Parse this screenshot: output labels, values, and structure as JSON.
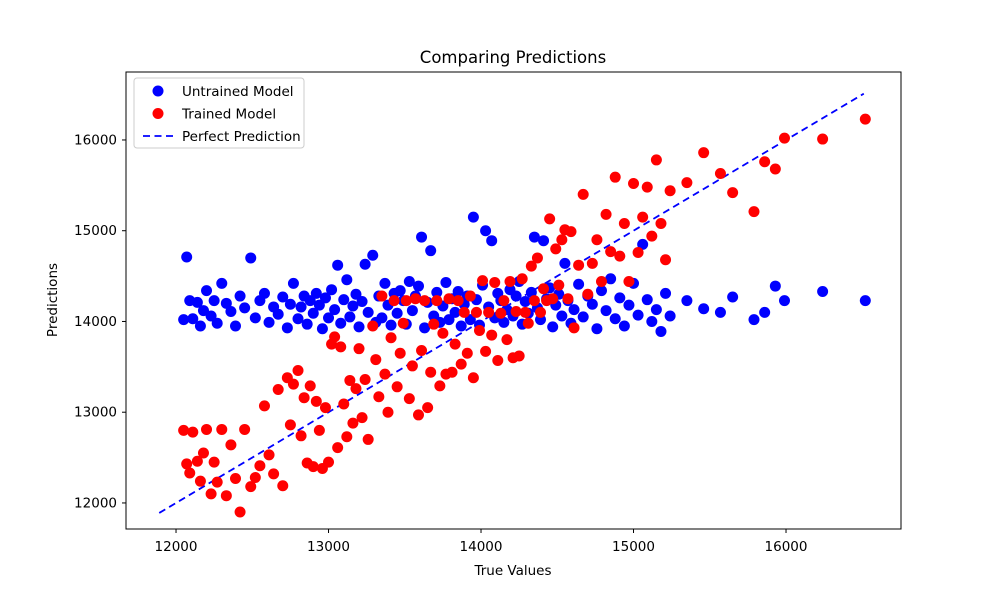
{
  "figure": {
    "title": "Comparing Predictions",
    "xlabel": "True Values",
    "ylabel": "Predictions",
    "background_color": "#ffffff",
    "spine_color": "#000000"
  },
  "chart_data": {
    "type": "scatter",
    "title": "Comparing Predictions",
    "xlabel": "True Values",
    "ylabel": "Predictions",
    "grid": false,
    "legend_position": "upper-left",
    "xlim": [
      11672,
      16754
    ],
    "ylim": [
      11713,
      16749
    ],
    "x_ticks": [
      12000,
      13000,
      14000,
      15000,
      16000
    ],
    "y_ticks": [
      12000,
      13000,
      14000,
      15000,
      16000
    ],
    "series": [
      {
        "name": "Untrained Model",
        "color": "#0000ff",
        "marker": "circle",
        "points": [
          [
            12050,
            14020
          ],
          [
            12070,
            14710
          ],
          [
            12090,
            14230
          ],
          [
            12110,
            14030
          ],
          [
            12140,
            14210
          ],
          [
            12160,
            13950
          ],
          [
            12180,
            14120
          ],
          [
            12200,
            14340
          ],
          [
            12230,
            14060
          ],
          [
            12250,
            14230
          ],
          [
            12270,
            13980
          ],
          [
            12300,
            14420
          ],
          [
            12330,
            14200
          ],
          [
            12360,
            14110
          ],
          [
            12390,
            13950
          ],
          [
            12420,
            14280
          ],
          [
            12450,
            14150
          ],
          [
            12490,
            14700
          ],
          [
            12520,
            14040
          ],
          [
            12550,
            14230
          ],
          [
            12580,
            14310
          ],
          [
            12610,
            13990
          ],
          [
            12640,
            14160
          ],
          [
            12670,
            14080
          ],
          [
            12700,
            14270
          ],
          [
            12730,
            13930
          ],
          [
            12750,
            14190
          ],
          [
            12770,
            14420
          ],
          [
            12800,
            14030
          ],
          [
            12820,
            14160
          ],
          [
            12840,
            14280
          ],
          [
            12860,
            13970
          ],
          [
            12880,
            14230
          ],
          [
            12900,
            14090
          ],
          [
            12920,
            14310
          ],
          [
            12940,
            14180
          ],
          [
            12960,
            13920
          ],
          [
            12980,
            14260
          ],
          [
            13000,
            14040
          ],
          [
            13020,
            14350
          ],
          [
            13040,
            14130
          ],
          [
            13060,
            14620
          ],
          [
            13080,
            13980
          ],
          [
            13100,
            14240
          ],
          [
            13120,
            14460
          ],
          [
            13140,
            14050
          ],
          [
            13160,
            14170
          ],
          [
            13180,
            14300
          ],
          [
            13200,
            13940
          ],
          [
            13220,
            14220
          ],
          [
            13240,
            14630
          ],
          [
            13260,
            14100
          ],
          [
            13290,
            14730
          ],
          [
            13310,
            13990
          ],
          [
            13330,
            14280
          ],
          [
            13350,
            14040
          ],
          [
            13370,
            14420
          ],
          [
            13390,
            14180
          ],
          [
            13410,
            13960
          ],
          [
            13430,
            14310
          ],
          [
            13450,
            14090
          ],
          [
            13470,
            14340
          ],
          [
            13490,
            14230
          ],
          [
            13510,
            13970
          ],
          [
            13530,
            14440
          ],
          [
            13550,
            14120
          ],
          [
            13570,
            14280
          ],
          [
            13590,
            14390
          ],
          [
            13610,
            14930
          ],
          [
            13630,
            13930
          ],
          [
            13650,
            14210
          ],
          [
            13670,
            14780
          ],
          [
            13690,
            14060
          ],
          [
            13710,
            14320
          ],
          [
            13730,
            13990
          ],
          [
            13750,
            14170
          ],
          [
            13770,
            14430
          ],
          [
            13790,
            14020
          ],
          [
            13810,
            14250
          ],
          [
            13830,
            14100
          ],
          [
            13850,
            14330
          ],
          [
            13870,
            13950
          ],
          [
            13890,
            14190
          ],
          [
            13910,
            14280
          ],
          [
            13930,
            14020
          ],
          [
            13950,
            15150
          ],
          [
            13970,
            14240
          ],
          [
            13990,
            13960
          ],
          [
            14010,
            14400
          ],
          [
            14030,
            15000
          ],
          [
            14050,
            14160
          ],
          [
            14070,
            14890
          ],
          [
            14090,
            14040
          ],
          [
            14110,
            14310
          ],
          [
            14130,
            14230
          ],
          [
            14150,
            13990
          ],
          [
            14170,
            14130
          ],
          [
            14190,
            14350
          ],
          [
            14210,
            14060
          ],
          [
            14230,
            14280
          ],
          [
            14250,
            14440
          ],
          [
            14270,
            13970
          ],
          [
            14290,
            14220
          ],
          [
            14310,
            14090
          ],
          [
            14330,
            14320
          ],
          [
            14350,
            14930
          ],
          [
            14370,
            14150
          ],
          [
            14390,
            14020
          ],
          [
            14410,
            14890
          ],
          [
            14430,
            14250
          ],
          [
            14450,
            14370
          ],
          [
            14470,
            13940
          ],
          [
            14490,
            14180
          ],
          [
            14510,
            14300
          ],
          [
            14530,
            14060
          ],
          [
            14550,
            14640
          ],
          [
            14570,
            14230
          ],
          [
            14590,
            13980
          ],
          [
            14610,
            14130
          ],
          [
            14640,
            14410
          ],
          [
            14670,
            14050
          ],
          [
            14700,
            14280
          ],
          [
            14730,
            14190
          ],
          [
            14760,
            13920
          ],
          [
            14790,
            14340
          ],
          [
            14820,
            14120
          ],
          [
            14850,
            14470
          ],
          [
            14880,
            14030
          ],
          [
            14910,
            14260
          ],
          [
            14940,
            13950
          ],
          [
            14970,
            14180
          ],
          [
            15000,
            14420
          ],
          [
            15030,
            14070
          ],
          [
            15060,
            14850
          ],
          [
            15090,
            14240
          ],
          [
            15120,
            14000
          ],
          [
            15150,
            14130
          ],
          [
            15180,
            13890
          ],
          [
            15210,
            14310
          ],
          [
            15240,
            14060
          ],
          [
            15350,
            14230
          ],
          [
            15460,
            14140
          ],
          [
            15570,
            14100
          ],
          [
            15650,
            14270
          ],
          [
            15790,
            14020
          ],
          [
            15860,
            14100
          ],
          [
            15930,
            14390
          ],
          [
            15990,
            14230
          ],
          [
            16240,
            14330
          ],
          [
            16520,
            14230
          ]
        ]
      },
      {
        "name": "Trained Model",
        "color": "#ff0000",
        "marker": "circle",
        "points": [
          [
            12050,
            12800
          ],
          [
            12070,
            12430
          ],
          [
            12090,
            12330
          ],
          [
            12110,
            12780
          ],
          [
            12140,
            12460
          ],
          [
            12160,
            12240
          ],
          [
            12180,
            12550
          ],
          [
            12200,
            12810
          ],
          [
            12230,
            12100
          ],
          [
            12250,
            12450
          ],
          [
            12270,
            12230
          ],
          [
            12300,
            12810
          ],
          [
            12330,
            12080
          ],
          [
            12360,
            12640
          ],
          [
            12390,
            12270
          ],
          [
            12420,
            11900
          ],
          [
            12450,
            12810
          ],
          [
            12490,
            12180
          ],
          [
            12520,
            12280
          ],
          [
            12550,
            12410
          ],
          [
            12580,
            13070
          ],
          [
            12610,
            12530
          ],
          [
            12640,
            12320
          ],
          [
            12670,
            13250
          ],
          [
            12700,
            12190
          ],
          [
            12730,
            13380
          ],
          [
            12750,
            12860
          ],
          [
            12770,
            13310
          ],
          [
            12800,
            13460
          ],
          [
            12820,
            12740
          ],
          [
            12840,
            13160
          ],
          [
            12860,
            12440
          ],
          [
            12880,
            13290
          ],
          [
            12900,
            12400
          ],
          [
            12920,
            13120
          ],
          [
            12940,
            12800
          ],
          [
            12960,
            12380
          ],
          [
            12980,
            13050
          ],
          [
            13000,
            12450
          ],
          [
            13020,
            13750
          ],
          [
            13040,
            13830
          ],
          [
            13060,
            12610
          ],
          [
            13080,
            13720
          ],
          [
            13100,
            13090
          ],
          [
            13120,
            12730
          ],
          [
            13140,
            13350
          ],
          [
            13160,
            12880
          ],
          [
            13180,
            13260
          ],
          [
            13200,
            13700
          ],
          [
            13220,
            12940
          ],
          [
            13240,
            13360
          ],
          [
            13260,
            12700
          ],
          [
            13290,
            13950
          ],
          [
            13310,
            13580
          ],
          [
            13330,
            13170
          ],
          [
            13350,
            14280
          ],
          [
            13370,
            13420
          ],
          [
            13390,
            13000
          ],
          [
            13410,
            13820
          ],
          [
            13430,
            14230
          ],
          [
            13450,
            13280
          ],
          [
            13470,
            13650
          ],
          [
            13490,
            13980
          ],
          [
            13510,
            14230
          ],
          [
            13530,
            13150
          ],
          [
            13550,
            13510
          ],
          [
            13570,
            14250
          ],
          [
            13590,
            12970
          ],
          [
            13610,
            13680
          ],
          [
            13630,
            14230
          ],
          [
            13650,
            13050
          ],
          [
            13670,
            13440
          ],
          [
            13690,
            13970
          ],
          [
            13710,
            14230
          ],
          [
            13730,
            13290
          ],
          [
            13750,
            13870
          ],
          [
            13770,
            13420
          ],
          [
            13790,
            14250
          ],
          [
            13810,
            13440
          ],
          [
            13830,
            13750
          ],
          [
            13850,
            14230
          ],
          [
            13870,
            13530
          ],
          [
            13890,
            14100
          ],
          [
            13910,
            13650
          ],
          [
            13930,
            14280
          ],
          [
            13950,
            13380
          ],
          [
            13970,
            14100
          ],
          [
            13990,
            13900
          ],
          [
            14010,
            14450
          ],
          [
            14030,
            13670
          ],
          [
            14050,
            14100
          ],
          [
            14070,
            13850
          ],
          [
            14090,
            14430
          ],
          [
            14110,
            13570
          ],
          [
            14130,
            14090
          ],
          [
            14150,
            14230
          ],
          [
            14170,
            13800
          ],
          [
            14190,
            14440
          ],
          [
            14210,
            13600
          ],
          [
            14230,
            14110
          ],
          [
            14250,
            13620
          ],
          [
            14270,
            14470
          ],
          [
            14290,
            14100
          ],
          [
            14310,
            13980
          ],
          [
            14330,
            14610
          ],
          [
            14350,
            14230
          ],
          [
            14370,
            14700
          ],
          [
            14390,
            14100
          ],
          [
            14410,
            14360
          ],
          [
            14430,
            14230
          ],
          [
            14450,
            15130
          ],
          [
            14470,
            14250
          ],
          [
            14490,
            14800
          ],
          [
            14510,
            14400
          ],
          [
            14530,
            14900
          ],
          [
            14550,
            15010
          ],
          [
            14570,
            14250
          ],
          [
            14590,
            14990
          ],
          [
            14610,
            13930
          ],
          [
            14640,
            14620
          ],
          [
            14670,
            15400
          ],
          [
            14700,
            14300
          ],
          [
            14730,
            14640
          ],
          [
            14760,
            14900
          ],
          [
            14790,
            14440
          ],
          [
            14820,
            15180
          ],
          [
            14850,
            14770
          ],
          [
            14880,
            15590
          ],
          [
            14910,
            14720
          ],
          [
            14940,
            15080
          ],
          [
            14970,
            14440
          ],
          [
            15000,
            15520
          ],
          [
            15030,
            14760
          ],
          [
            15060,
            15150
          ],
          [
            15090,
            15480
          ],
          [
            15120,
            14940
          ],
          [
            15150,
            15780
          ],
          [
            15180,
            15080
          ],
          [
            15210,
            14680
          ],
          [
            15240,
            15440
          ],
          [
            15350,
            15530
          ],
          [
            15460,
            15860
          ],
          [
            15570,
            15630
          ],
          [
            15650,
            15420
          ],
          [
            15790,
            15210
          ],
          [
            15860,
            15760
          ],
          [
            15930,
            15680
          ],
          [
            15990,
            16020
          ],
          [
            16240,
            16010
          ],
          [
            16520,
            16230
          ]
        ]
      },
      {
        "name": "Perfect Prediction",
        "color": "#0000ff",
        "style": "dashed-line",
        "points": [
          [
            11890,
            11890
          ],
          [
            16510,
            16510
          ]
        ]
      }
    ]
  }
}
